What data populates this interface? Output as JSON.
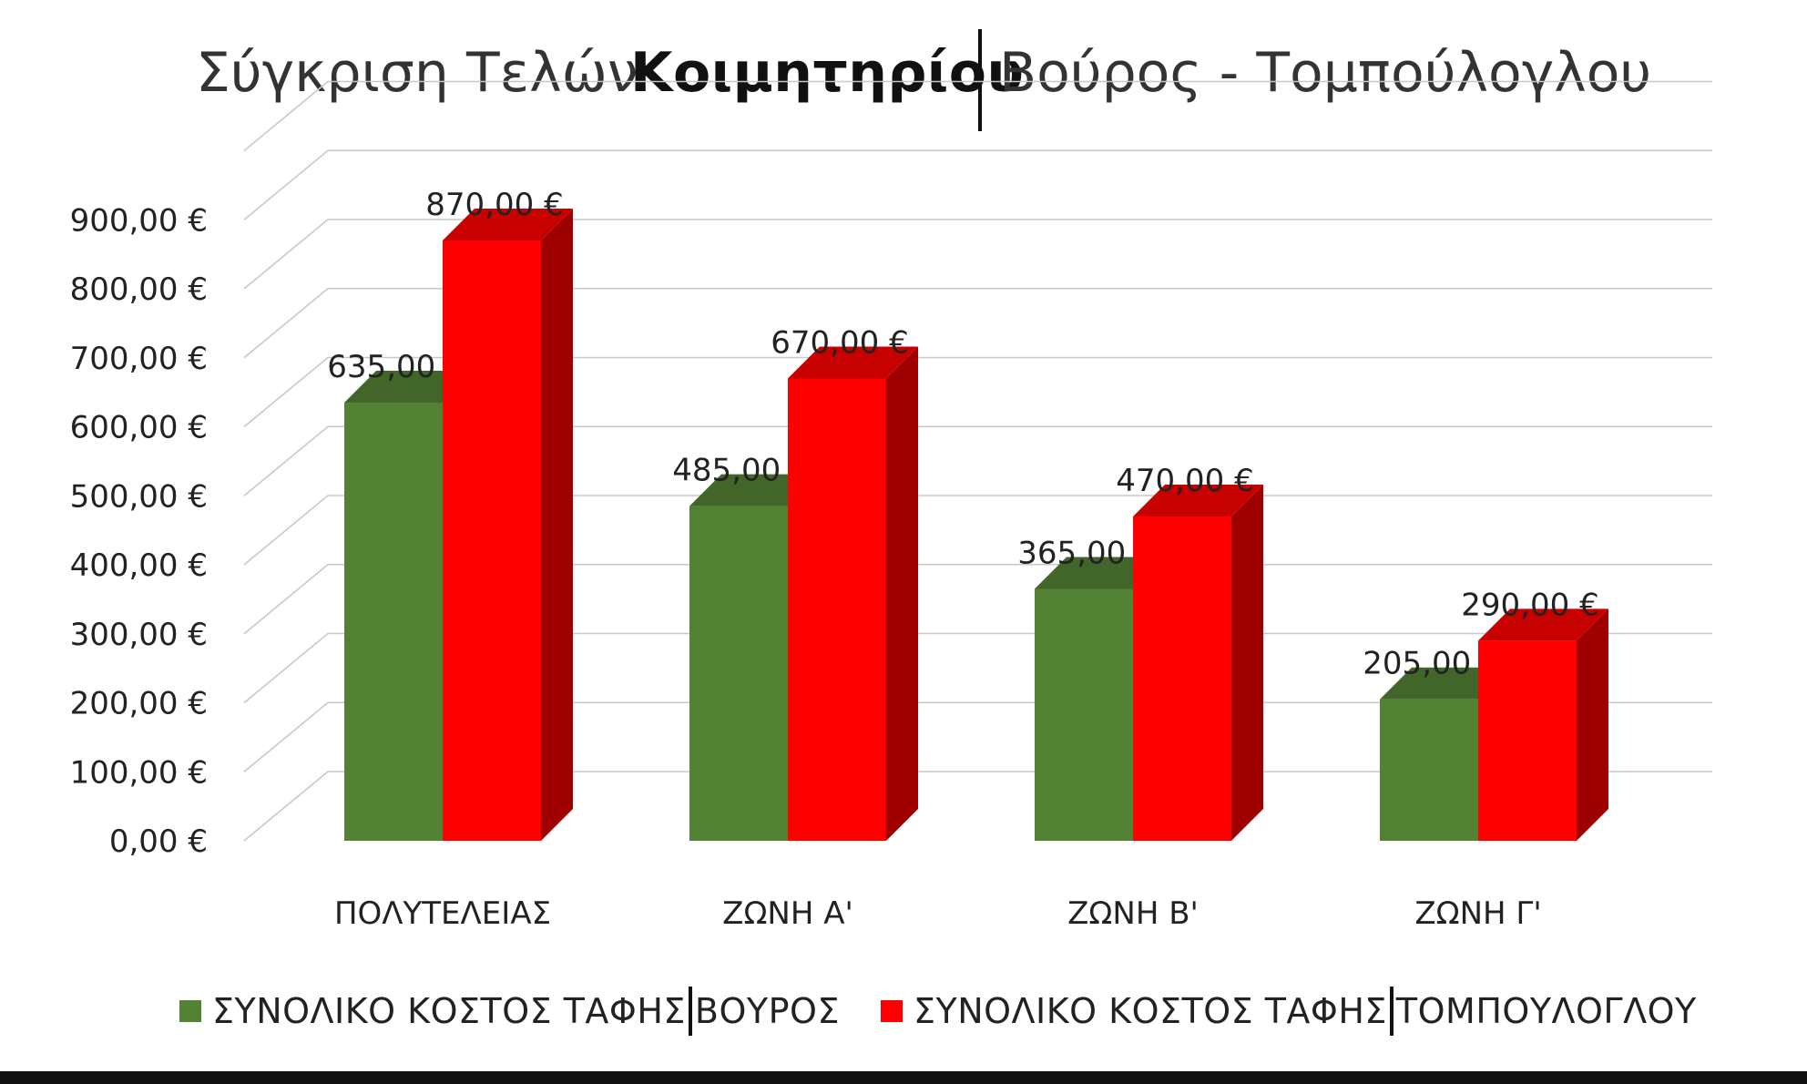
{
  "title": {
    "part1": "Σύγκριση Τελών",
    "part2": "Κοιμητηρίου",
    "part3": "Βούρος - Τομπούλογλου"
  },
  "legend": [
    {
      "prefix": "ΣΥΝΟΛΙΚΟ ΚΟΣΤΟΣ ΤΑΦΗΣ",
      "suffix": "ΒΟΥΡΟΣ",
      "color": "#548235"
    },
    {
      "prefix": "ΣΥΝΟΛΙΚΟ ΚΟΣΤΟΣ ΤΑΦΗΣ",
      "suffix": "ΤΟΜΠΟΥΛΟΓΛΟΥ",
      "color": "#ff0000"
    }
  ],
  "chart_data": {
    "type": "bar",
    "categories": [
      "ΠΟΛΥΤΕΛΕΙΑΣ",
      "ΖΩΝΗ Α'",
      "ΖΩΝΗ Β'",
      "ΖΩΝΗ Γ'"
    ],
    "series": [
      {
        "name": "ΣΥΝΟΛΙΚΟ ΚΟΣΤΟΣ ΤΑΦΗΣ ΒΟΥΡΟΣ",
        "values": [
          635,
          485,
          365,
          205
        ],
        "color": "#548235"
      },
      {
        "name": "ΣΥΝΟΛΙΚΟ ΚΟΣΤΟΣ ΤΑΦΗΣ ΤΟΜΠΟΥΛΟΓΛΟΥ",
        "values": [
          870,
          670,
          470,
          290
        ],
        "color": "#ff0000"
      }
    ],
    "data_labels": [
      [
        "635,00 €",
        "485,00 €",
        "365,00 €",
        "205,00 €"
      ],
      [
        "870,00 €",
        "670,00 €",
        "470,00 €",
        "290,00 €"
      ]
    ],
    "y_ticks": [
      0,
      100,
      200,
      300,
      400,
      500,
      600,
      700,
      800,
      900
    ],
    "y_tick_labels": [
      "0,00 €",
      "100,00 €",
      "200,00 €",
      "300,00 €",
      "400,00 €",
      "500,00 €",
      "600,00 €",
      "700,00 €",
      "800,00 €",
      "900,00 €"
    ],
    "ylim": [
      0,
      1000
    ],
    "grid": true,
    "legend_position": "bottom",
    "style": "3d-clustered-column"
  }
}
